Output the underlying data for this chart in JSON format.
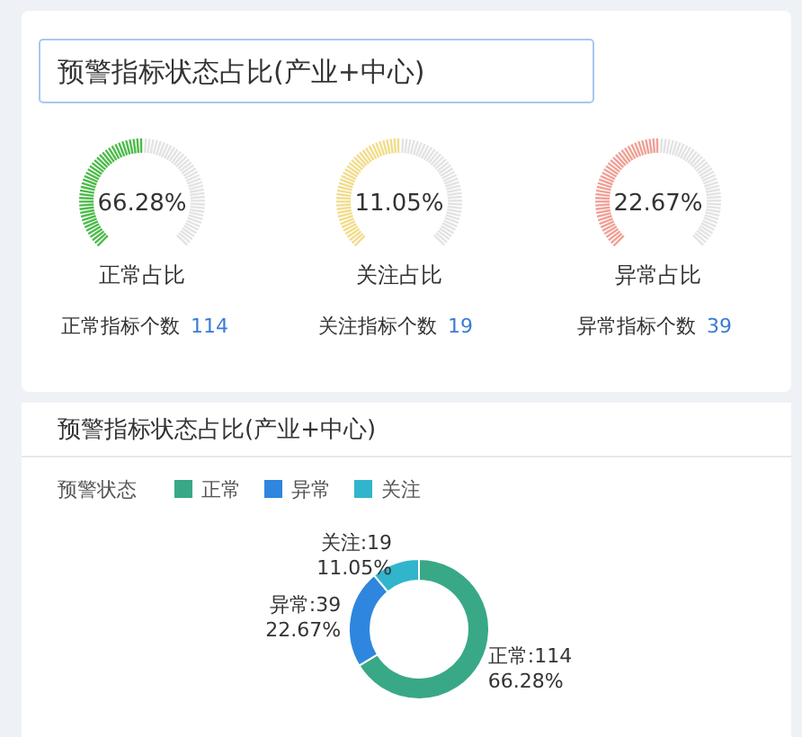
{
  "chart_data": [
    {
      "type": "other",
      "title": "预警指标状态占比(产业+中心)"
    },
    {
      "type": "other",
      "title": "正常占比",
      "color": "#4cbb4a",
      "annotations": [
        "66.28%",
        "正常指标个数",
        "114"
      ]
    },
    {
      "type": "other",
      "title": "关注占比",
      "color": "#f2dc8a",
      "annotations": [
        "11.05%",
        "关注指标个数",
        "19"
      ]
    },
    {
      "type": "other",
      "title": "异常占比",
      "color": "#f0a095",
      "annotations": [
        "22.67%",
        "异常指标个数",
        "39"
      ]
    },
    {
      "type": "donut",
      "title": "预警指标状态占比(产业+中心)",
      "legend_title": "预警状态",
      "legend": "top left",
      "categories": [
        "正常",
        "异常",
        "关注"
      ],
      "values": [
        114,
        39,
        19
      ],
      "colors": [
        "#39a886",
        "#2e86de",
        "#30b5cc"
      ],
      "value_labels": [
        "正常:114\n66.28%",
        "异常:39\n22.67%",
        "关注:19\n11.05%"
      ]
    }
  ]
}
